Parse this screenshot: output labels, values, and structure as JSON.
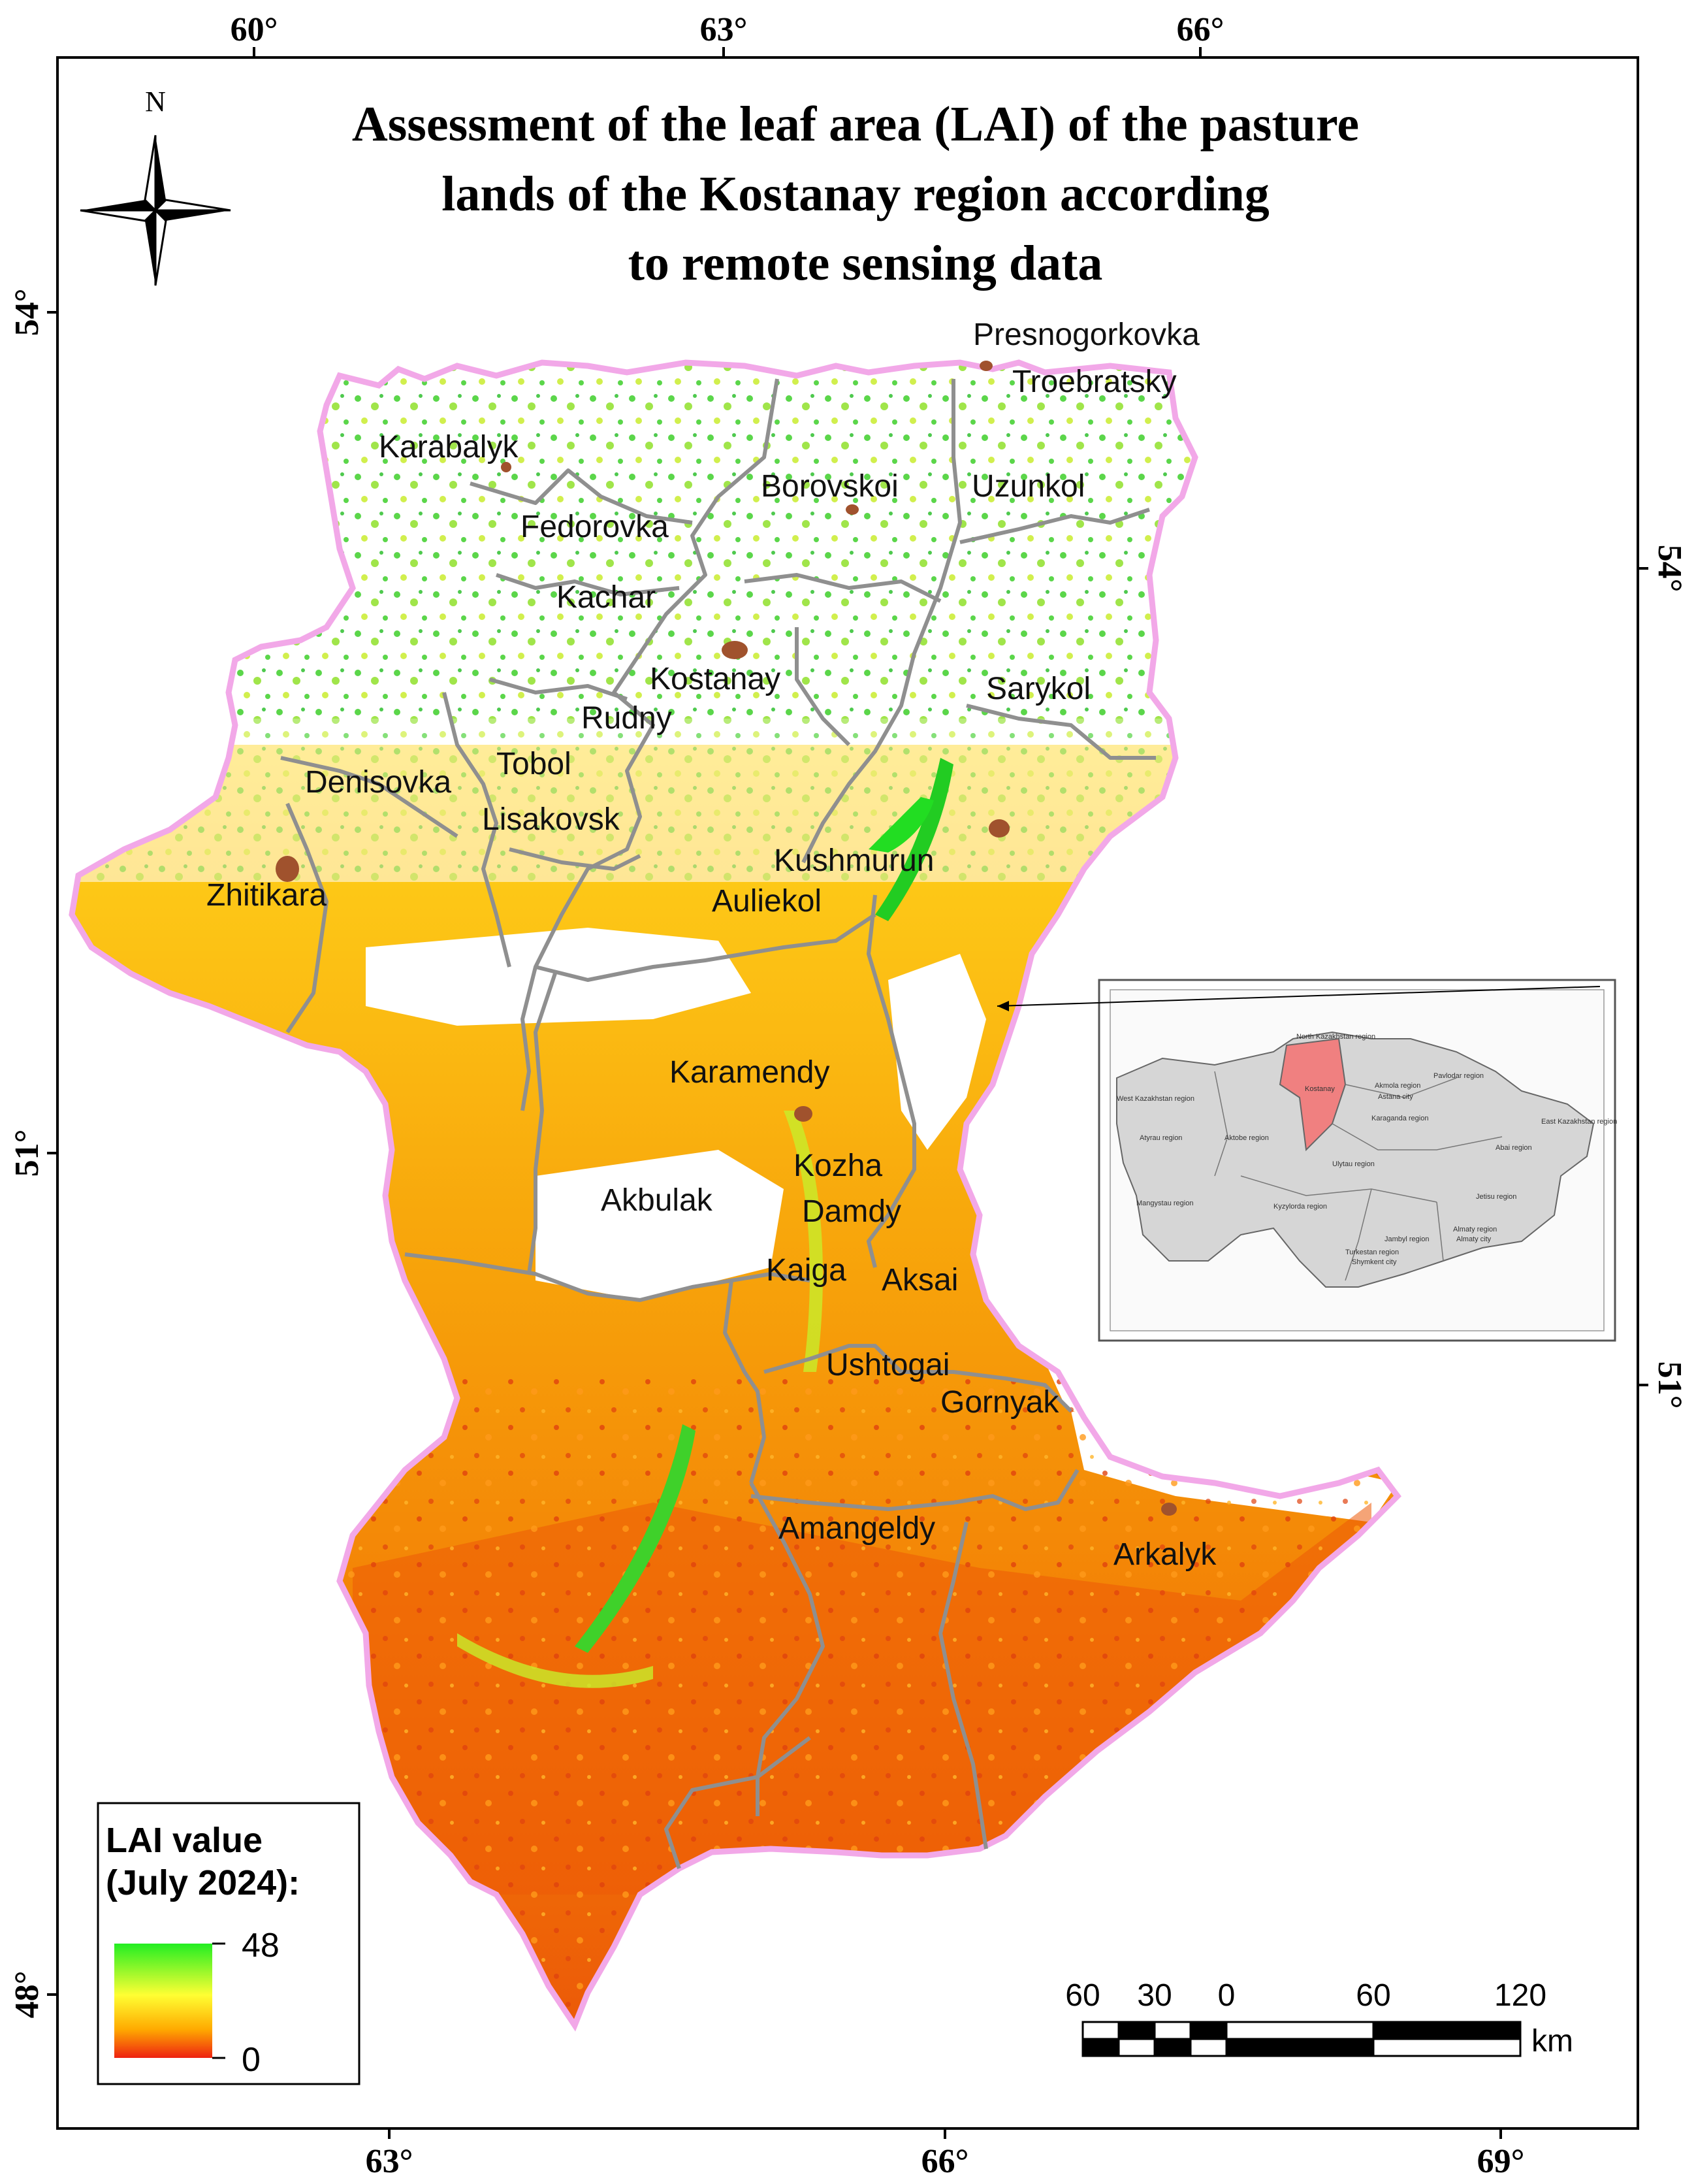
{
  "title": {
    "line1": "Assessment of the leaf area (LAI) of the pasture",
    "line2": "lands of the Kostanay region according",
    "line3": "to remote sensing data"
  },
  "north_arrow": {
    "label": "N"
  },
  "graticule": {
    "top": [
      "60°",
      "63°",
      "66°"
    ],
    "bottom": [
      "63°",
      "66°",
      "69°"
    ],
    "left": [
      "54°",
      "51°",
      "48°"
    ],
    "right": [
      "54°",
      "51°"
    ]
  },
  "places": [
    "Presnogorkovka",
    "Troebratsky",
    "Karabalyk",
    "Borovskoi",
    "Uzunkol",
    "Fedorovka",
    "Kachar",
    "Kostanay",
    "Sarykol",
    "Rudny",
    "Tobol",
    "Denisovka",
    "Lisakovsk",
    "Kushmurun",
    "Zhitikara",
    "Auliekol",
    "Karamendy",
    "Kozha",
    "Akbulak",
    "Damdy",
    "Kaiga",
    "Aksai",
    "Ushtogai",
    "Gornyak",
    "Amangeldy",
    "Arkalyk"
  ],
  "legend": {
    "title_line1": "LAI value",
    "title_line2": "(July 2024):",
    "max": "48",
    "min": "0",
    "colors": {
      "high": "#22ee22",
      "mid": "#ffff33",
      "low": "#ee2211"
    }
  },
  "scale_bar": {
    "labels": [
      "60",
      "30",
      "0",
      "60",
      "120"
    ],
    "unit": "km"
  },
  "inset": {
    "regions": [
      "North Kazakhstan region",
      "Kostanay",
      "Akmola region",
      "Pavlodar region",
      "Astana city",
      "West Kazakhstan region",
      "Aktobe region",
      "Karaganda region",
      "East Kazakhstan region",
      "Atyrau region",
      "Ulytau region",
      "Abai region",
      "Mangystau region",
      "Kyzylorda region",
      "Jetisu region",
      "Jambyl region",
      "Almaty region",
      "Turkestan region",
      "Almaty city",
      "Shymkent city"
    ],
    "highlight_color": "#f08080"
  },
  "colors": {
    "boundary": "#8f8f8f",
    "outline": "#f2a8e8",
    "settlement": "#a0522d"
  }
}
